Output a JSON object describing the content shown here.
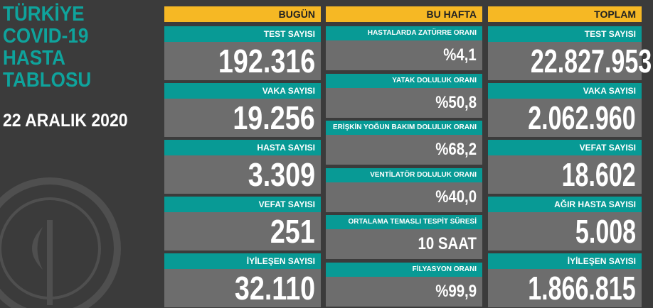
{
  "header": {
    "title": [
      "TÜRKİYE",
      "COVID-19",
      "HASTA",
      "TABLOSU"
    ],
    "date": "22 ARALIK 2020"
  },
  "columns": [
    {
      "header": "BUGÜN",
      "items": [
        {
          "label": "TEST SAYISI",
          "value": "192.316"
        },
        {
          "label": "VAKA SAYISI",
          "value": "19.256"
        },
        {
          "label": "HASTA SAYISI",
          "value": "3.309"
        },
        {
          "label": "VEFAT SAYISI",
          "value": "251"
        },
        {
          "label": "İYİLEŞEN SAYISI",
          "value": "32.110"
        }
      ]
    },
    {
      "header": "BU HAFTA",
      "items": [
        {
          "label": "HASTALARDA ZATÜRRE ORANI",
          "value": "%4,1"
        },
        {
          "label": "YATAK DOLULUK ORANI",
          "value": "%50,8"
        },
        {
          "label": "ERİŞKİN YOĞUN BAKIM DOLULUK ORANI",
          "value": "%68,2"
        },
        {
          "label": "VENTİLATÖR DOLULUK ORANI",
          "value": "%40,0"
        },
        {
          "label": "ORTALAMA TEMASLI TESPİT SÜRESİ",
          "value": "10 SAAT"
        },
        {
          "label": "FİLYASYON ORANI",
          "value": "%99,9"
        }
      ]
    },
    {
      "header": "TOPLAM",
      "items": [
        {
          "label": "TEST SAYISI",
          "value": "22.827.953"
        },
        {
          "label": "VAKA SAYISI",
          "value": "2.062.960"
        },
        {
          "label": "VEFAT SAYISI",
          "value": "18.602"
        },
        {
          "label": "AĞIR HASTA SAYISI",
          "value": "5.008"
        },
        {
          "label": "İYİLEŞEN SAYISI",
          "value": "1.866.815"
        }
      ]
    }
  ]
}
